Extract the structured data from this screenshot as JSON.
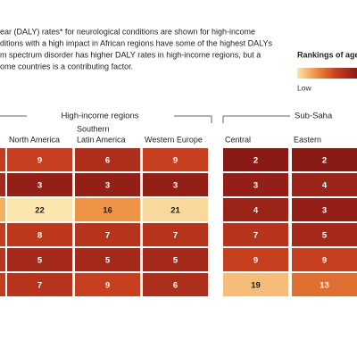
{
  "intro": [
    "ear (DALY) rates* for neurological conditions are shown for high-income",
    "ditions with a high impact in African regions have some of the highest DALYs",
    "m spectrum disorder has higher DALY rates in high-income regions, but a",
    "ome countries is a contributing factor."
  ],
  "legend": {
    "title": "Rankings of age",
    "low_label": "Low",
    "colors": [
      "#8a1a16",
      "#c43b1e",
      "#ee8a3a",
      "#fbe6ad"
    ]
  },
  "groups": [
    "High-income regions",
    "Sub-Saha"
  ],
  "table": {
    "columns": [
      [
        "North America"
      ],
      [
        "Southern",
        "Latin America"
      ],
      [
        "Western Europe"
      ],
      [
        "Central"
      ],
      [
        "Eastern"
      ]
    ],
    "rows": [
      [
        9,
        6,
        9,
        2,
        2
      ],
      [
        3,
        3,
        3,
        3,
        4
      ],
      [
        22,
        16,
        21,
        4,
        3
      ],
      [
        8,
        7,
        7,
        7,
        5
      ],
      [
        5,
        5,
        5,
        9,
        9
      ],
      [
        7,
        9,
        6,
        19,
        13
      ]
    ]
  }
}
